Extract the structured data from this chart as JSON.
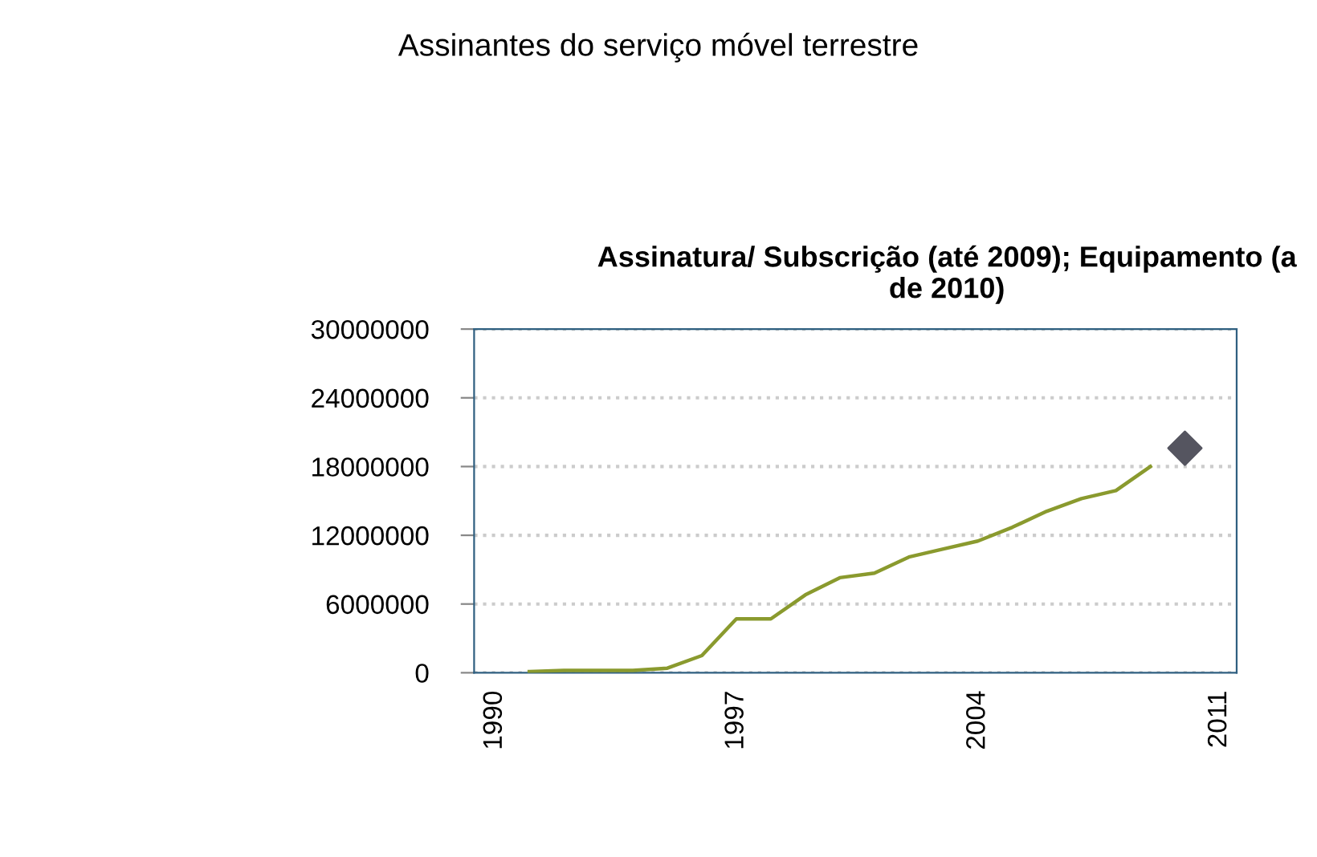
{
  "chart_data": {
    "type": "line",
    "title": "Assinantes do serviço móvel terrestre",
    "subtitle": "Assinatura/ Subscrição (até 2009); Equipamento (a\nde 2010)",
    "xlim": [
      1989.4,
      2011.5
    ],
    "xticks": [
      1990,
      1997,
      2004,
      2011
    ],
    "ylim": [
      0,
      30000000
    ],
    "yticks": [
      0,
      6000000,
      12000000,
      18000000,
      24000000,
      30000000
    ],
    "grid": "y",
    "series": [
      {
        "color": "#8a9a2e",
        "marker": "none",
        "x": [
          1991,
          1992,
          1993,
          1994,
          1995,
          1996,
          1997,
          1998,
          1999,
          2000,
          2001,
          2002,
          2003,
          2004,
          2005,
          2006,
          2007,
          2008,
          2009
        ],
        "values": [
          100000,
          200000,
          200000,
          200000,
          400000,
          1500000,
          4700000,
          4700000,
          6800000,
          8300000,
          8700000,
          10100000,
          10800000,
          11500000,
          12700000,
          14100000,
          15200000,
          15900000,
          18000000
        ]
      },
      {
        "type": "scatter",
        "color": "#555560",
        "marker": "diamond",
        "x": [
          2010
        ],
        "values": [
          19600000
        ]
      }
    ]
  }
}
